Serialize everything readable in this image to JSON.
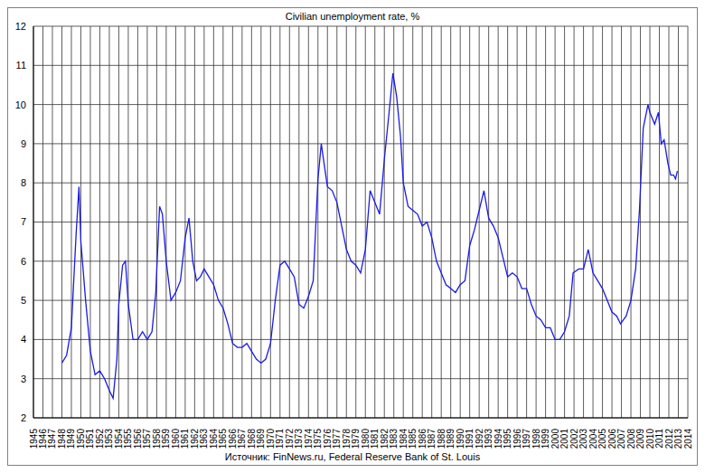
{
  "chart_data": {
    "type": "line",
    "title": "Civilian unemployment rate, %",
    "source": "Источник: FinNews.ru, Federal Reserve Bank of St. Louis",
    "x": [
      1948.0,
      1948.5,
      1949.0,
      1949.5,
      1949.8,
      1950.0,
      1950.5,
      1951.0,
      1951.5,
      1952.0,
      1952.5,
      1953.0,
      1953.4,
      1953.8,
      1954.0,
      1954.4,
      1954.7,
      1955.0,
      1955.5,
      1956.0,
      1956.5,
      1957.0,
      1957.5,
      1957.9,
      1958.3,
      1958.6,
      1959.0,
      1959.5,
      1960.0,
      1960.5,
      1961.0,
      1961.4,
      1961.8,
      1962.2,
      1962.6,
      1963.0,
      1963.5,
      1964.0,
      1964.5,
      1965.0,
      1965.5,
      1966.0,
      1966.5,
      1967.0,
      1967.5,
      1968.0,
      1968.5,
      1969.0,
      1969.5,
      1970.0,
      1970.5,
      1971.0,
      1971.5,
      1972.0,
      1972.5,
      1973.0,
      1973.5,
      1974.0,
      1974.5,
      1975.0,
      1975.35,
      1975.7,
      1976.0,
      1976.5,
      1977.0,
      1977.5,
      1978.0,
      1978.5,
      1979.0,
      1979.5,
      1980.0,
      1980.5,
      1981.0,
      1981.5,
      1982.0,
      1982.5,
      1982.9,
      1983.3,
      1983.7,
      1984.0,
      1984.5,
      1985.0,
      1985.5,
      1986.0,
      1986.5,
      1987.0,
      1987.5,
      1988.0,
      1988.5,
      1989.0,
      1989.5,
      1990.0,
      1990.5,
      1991.0,
      1991.5,
      1992.0,
      1992.5,
      1993.0,
      1993.5,
      1994.0,
      1994.5,
      1995.0,
      1995.5,
      1996.0,
      1996.5,
      1997.0,
      1997.5,
      1998.0,
      1998.5,
      1999.0,
      1999.5,
      2000.0,
      2000.5,
      2001.0,
      2001.5,
      2001.9,
      2002.5,
      2003.0,
      2003.5,
      2004.0,
      2004.5,
      2005.0,
      2005.5,
      2006.0,
      2006.5,
      2006.9,
      2007.5,
      2008.0,
      2008.5,
      2008.9,
      2009.3,
      2009.8,
      2010.0,
      2010.5,
      2010.9,
      2011.2,
      2011.5,
      2011.9,
      2012.2,
      2012.5,
      2012.7,
      2012.9
    ],
    "values": [
      3.4,
      3.6,
      4.3,
      6.7,
      7.9,
      6.5,
      5.0,
      3.7,
      3.1,
      3.2,
      3.0,
      2.7,
      2.5,
      3.5,
      4.9,
      5.9,
      6.0,
      4.9,
      4.0,
      4.0,
      4.2,
      4.0,
      4.2,
      5.2,
      7.4,
      7.2,
      6.0,
      5.0,
      5.2,
      5.5,
      6.6,
      7.1,
      6.0,
      5.5,
      5.6,
      5.8,
      5.6,
      5.4,
      5.0,
      4.8,
      4.4,
      3.9,
      3.8,
      3.8,
      3.9,
      3.7,
      3.5,
      3.4,
      3.5,
      3.9,
      5.0,
      5.9,
      6.0,
      5.8,
      5.6,
      4.9,
      4.8,
      5.1,
      5.5,
      8.1,
      9.0,
      8.4,
      7.9,
      7.8,
      7.5,
      6.9,
      6.3,
      6.0,
      5.9,
      5.7,
      6.3,
      7.8,
      7.5,
      7.2,
      8.6,
      9.8,
      10.8,
      10.2,
      9.2,
      8.0,
      7.4,
      7.3,
      7.2,
      6.9,
      7.0,
      6.6,
      6.0,
      5.7,
      5.4,
      5.3,
      5.2,
      5.4,
      5.5,
      6.4,
      6.8,
      7.3,
      7.8,
      7.1,
      6.9,
      6.6,
      6.1,
      5.6,
      5.7,
      5.6,
      5.3,
      5.3,
      4.9,
      4.6,
      4.5,
      4.3,
      4.3,
      4.0,
      4.0,
      4.2,
      4.6,
      5.7,
      5.8,
      5.8,
      6.3,
      5.7,
      5.5,
      5.3,
      5.0,
      4.7,
      4.6,
      4.4,
      4.6,
      5.0,
      5.8,
      7.3,
      9.4,
      10.0,
      9.8,
      9.5,
      9.8,
      9.0,
      9.1,
      8.5,
      8.2,
      8.2,
      8.1,
      8.3
    ],
    "color": "#1a1ae6",
    "xlim": [
      1945,
      2014
    ],
    "xticks": [
      1945,
      1946,
      1947,
      1948,
      1949,
      1950,
      1951,
      1952,
      1953,
      1954,
      1955,
      1956,
      1957,
      1958,
      1959,
      1960,
      1961,
      1962,
      1963,
      1964,
      1965,
      1966,
      1967,
      1968,
      1969,
      1970,
      1971,
      1972,
      1973,
      1974,
      1975,
      1976,
      1977,
      1978,
      1979,
      1980,
      1981,
      1982,
      1983,
      1984,
      1985,
      1986,
      1987,
      1988,
      1989,
      1990,
      1991,
      1992,
      1993,
      1994,
      1995,
      1996,
      1997,
      1998,
      1999,
      2000,
      2001,
      2002,
      2003,
      2004,
      2005,
      2006,
      2007,
      2008,
      2009,
      2010,
      2011,
      2012,
      2013,
      2014
    ],
    "ylim": [
      2,
      12
    ],
    "yticks": [
      2,
      3,
      4,
      5,
      6,
      7,
      8,
      9,
      10,
      11,
      12
    ],
    "grid": true
  }
}
